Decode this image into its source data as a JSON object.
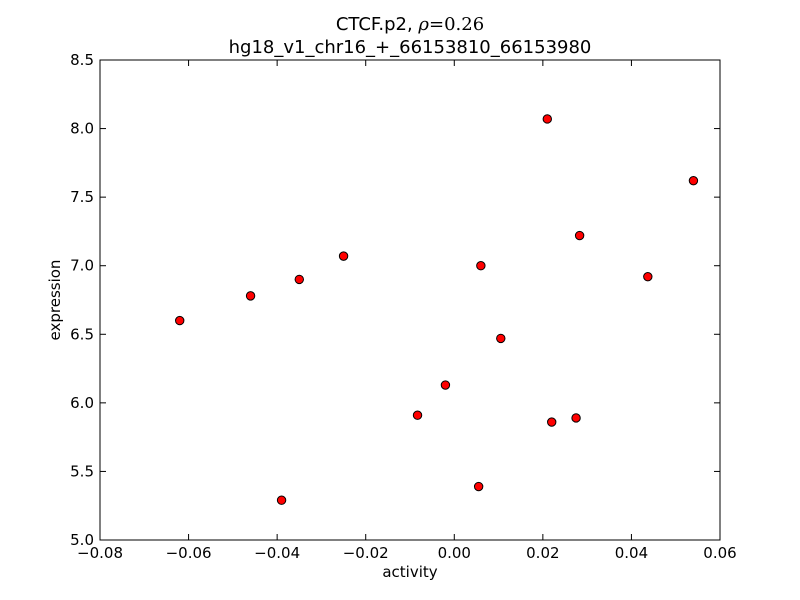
{
  "chart_data": {
    "type": "scatter",
    "title_prefix": "CTCF.p2, ",
    "title_rho_symbol": "ρ",
    "title_rho_value": "=0.26",
    "subtitle": "hg18_v1_chr16_+_66153810_66153980",
    "xlabel": "activity",
    "ylabel": "expression",
    "xlim": [
      -0.08,
      0.06
    ],
    "ylim": [
      5.0,
      8.5
    ],
    "xticks": [
      -0.08,
      -0.06,
      -0.04,
      -0.02,
      0.0,
      0.02,
      0.04,
      0.06
    ],
    "yticks": [
      5.0,
      5.5,
      6.0,
      6.5,
      7.0,
      7.5,
      8.0,
      8.5
    ],
    "xtick_labels": [
      "−0.08",
      "−0.06",
      "−0.04",
      "−0.02",
      "0.00",
      "0.02",
      "0.04",
      "0.06"
    ],
    "ytick_labels": [
      "5.0",
      "5.5",
      "6.0",
      "6.5",
      "7.0",
      "7.5",
      "8.0",
      "8.5"
    ],
    "grid": false,
    "marker_color": "#ff0000",
    "marker_edge_color": "#000000",
    "points": [
      {
        "x": -0.062,
        "y": 6.6
      },
      {
        "x": -0.046,
        "y": 6.78
      },
      {
        "x": -0.035,
        "y": 6.9
      },
      {
        "x": -0.039,
        "y": 5.29
      },
      {
        "x": -0.025,
        "y": 7.07
      },
      {
        "x": -0.0083,
        "y": 5.91
      },
      {
        "x": -0.002,
        "y": 6.13
      },
      {
        "x": 0.0055,
        "y": 5.39
      },
      {
        "x": 0.006,
        "y": 7.0
      },
      {
        "x": 0.0105,
        "y": 6.47
      },
      {
        "x": 0.021,
        "y": 8.07
      },
      {
        "x": 0.022,
        "y": 5.86
      },
      {
        "x": 0.0275,
        "y": 5.89
      },
      {
        "x": 0.0283,
        "y": 7.22
      },
      {
        "x": 0.0437,
        "y": 6.92
      },
      {
        "x": 0.054,
        "y": 7.62
      }
    ]
  }
}
